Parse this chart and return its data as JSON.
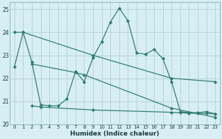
{
  "xlabel": "Humidex (Indice chaleur)",
  "bg_color": "#d7eef3",
  "grid_color": "#b8d4da",
  "line_color": "#2e7d6e",
  "xlim": [
    -0.5,
    23.5
  ],
  "ylim": [
    20,
    25.3
  ],
  "yticks": [
    20,
    21,
    22,
    23,
    24,
    25
  ],
  "xticks": [
    0,
    1,
    2,
    3,
    4,
    5,
    6,
    7,
    8,
    9,
    10,
    11,
    12,
    13,
    14,
    15,
    16,
    17,
    18,
    19,
    20,
    21,
    22,
    23
  ],
  "line_zigzag_x": [
    0,
    1,
    2,
    3,
    4,
    5,
    6,
    7,
    8,
    9,
    10,
    11,
    12,
    13,
    14,
    15,
    16,
    17,
    18,
    19,
    20,
    21,
    22,
    23
  ],
  "line_zigzag_y": [
    22.5,
    24.0,
    22.7,
    20.85,
    20.8,
    20.8,
    21.1,
    22.3,
    21.85,
    22.9,
    23.6,
    24.45,
    25.05,
    24.5,
    23.1,
    23.05,
    23.25,
    22.85,
    21.85,
    20.55,
    20.5,
    20.5,
    20.55,
    20.45
  ],
  "line_top_diag_x": [
    0,
    1,
    9,
    18,
    23
  ],
  "line_top_diag_y": [
    24.0,
    24.0,
    23.0,
    22.0,
    21.85
  ],
  "line_mid_diag_x": [
    2,
    7,
    8,
    18,
    23
  ],
  "line_mid_diag_y": [
    22.62,
    22.25,
    22.15,
    20.7,
    20.3
  ],
  "line_bot_flat_x": [
    2,
    3,
    9,
    18,
    19,
    20,
    21,
    22,
    23
  ],
  "line_bot_flat_y": [
    20.8,
    20.75,
    20.62,
    20.52,
    20.5,
    20.48,
    20.47,
    20.47,
    20.45
  ]
}
